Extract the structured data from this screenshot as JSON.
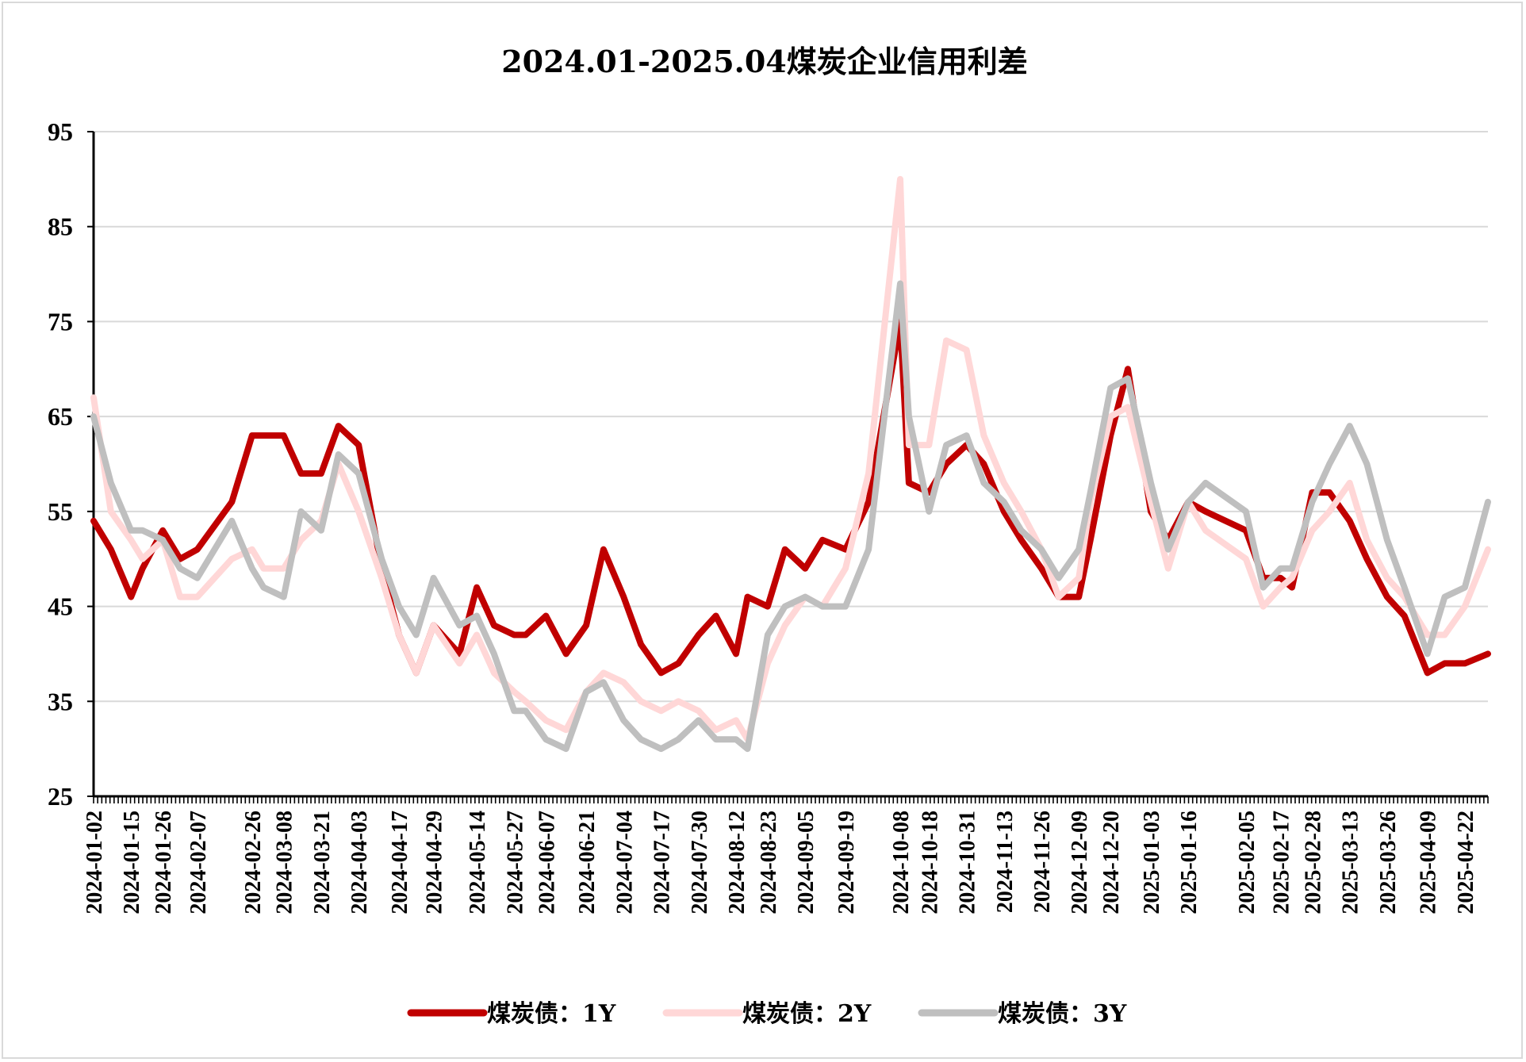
{
  "chart_data": {
    "type": "line",
    "title": "2024.01-2025.04煤炭企业信用利差",
    "xlabel": "",
    "ylabel": "",
    "ylim": [
      25,
      95
    ],
    "yticks": [
      25,
      35,
      45,
      55,
      65,
      75,
      85,
      95
    ],
    "x_tick_labels": [
      "2024-01-02",
      "2024-01-15",
      "2024-01-26",
      "2024-02-07",
      "2024-02-26",
      "2024-03-08",
      "2024-03-21",
      "2024-04-03",
      "2024-04-17",
      "2024-04-29",
      "2024-05-14",
      "2024-05-27",
      "2024-06-07",
      "2024-06-21",
      "2024-07-04",
      "2024-07-17",
      "2024-07-30",
      "2024-08-12",
      "2024-08-23",
      "2024-09-05",
      "2024-09-19",
      "2024-10-08",
      "2024-10-18",
      "2024-10-31",
      "2024-11-13",
      "2024-11-26",
      "2024-12-09",
      "2024-12-20",
      "2025-01-03",
      "2025-01-16",
      "2025-02-05",
      "2025-02-17",
      "2025-02-28",
      "2025-03-13",
      "2025-03-26",
      "2025-04-09",
      "2025-04-22"
    ],
    "x": [
      "2024-01-02",
      "2024-01-08",
      "2024-01-15",
      "2024-01-19",
      "2024-01-26",
      "2024-02-01",
      "2024-02-07",
      "2024-02-19",
      "2024-02-26",
      "2024-03-01",
      "2024-03-08",
      "2024-03-14",
      "2024-03-21",
      "2024-03-27",
      "2024-04-03",
      "2024-04-11",
      "2024-04-17",
      "2024-04-23",
      "2024-04-29",
      "2024-05-08",
      "2024-05-14",
      "2024-05-20",
      "2024-05-27",
      "2024-05-31",
      "2024-06-07",
      "2024-06-14",
      "2024-06-21",
      "2024-06-27",
      "2024-07-04",
      "2024-07-10",
      "2024-07-17",
      "2024-07-23",
      "2024-07-30",
      "2024-08-05",
      "2024-08-12",
      "2024-08-16",
      "2024-08-23",
      "2024-08-29",
      "2024-09-05",
      "2024-09-11",
      "2024-09-19",
      "2024-09-27",
      "2024-10-08",
      "2024-10-11",
      "2024-10-18",
      "2024-10-24",
      "2024-10-31",
      "2024-11-06",
      "2024-11-13",
      "2024-11-19",
      "2024-11-26",
      "2024-12-02",
      "2024-12-09",
      "2024-12-13",
      "2024-12-20",
      "2024-12-26",
      "2025-01-03",
      "2025-01-09",
      "2025-01-16",
      "2025-01-22",
      "2025-02-05",
      "2025-02-11",
      "2025-02-17",
      "2025-02-21",
      "2025-02-28",
      "2025-03-06",
      "2025-03-13",
      "2025-03-19",
      "2025-03-26",
      "2025-04-01",
      "2025-04-09",
      "2025-04-15",
      "2025-04-22",
      "2025-04-30"
    ],
    "series": [
      {
        "name": "煤炭债：1Y",
        "color": "#c00000",
        "values": [
          54,
          51,
          46,
          49,
          53,
          50,
          51,
          56,
          63,
          63,
          63,
          59,
          59,
          64,
          62,
          49,
          42,
          38,
          43,
          40,
          47,
          43,
          42,
          42,
          44,
          40,
          43,
          51,
          46,
          41,
          38,
          39,
          42,
          44,
          40,
          46,
          45,
          51,
          49,
          52,
          51,
          56,
          75,
          58,
          57,
          60,
          62,
          60,
          55,
          52,
          49,
          46,
          46,
          52,
          63,
          70,
          55,
          52,
          56,
          55,
          53,
          48,
          48,
          47,
          57,
          57,
          54,
          50,
          46,
          44,
          38,
          39,
          39,
          40
        ]
      },
      {
        "name": "煤炭债：2Y",
        "color": "#ffd7d7",
        "values": [
          67,
          55,
          52,
          50,
          52,
          46,
          46,
          50,
          51,
          49,
          49,
          52,
          54,
          60,
          55,
          48,
          42,
          38,
          43,
          39,
          42,
          38,
          36,
          35,
          33,
          32,
          36,
          38,
          37,
          35,
          34,
          35,
          34,
          32,
          33,
          31,
          39,
          43,
          46,
          45,
          49,
          59,
          90,
          62,
          62,
          73,
          72,
          63,
          58,
          55,
          51,
          46,
          48,
          56,
          65,
          66,
          56,
          49,
          56,
          53,
          50,
          45,
          47,
          48,
          53,
          55,
          58,
          52,
          48,
          46,
          42,
          42,
          45,
          51
        ]
      },
      {
        "name": "煤炭债：3Y",
        "color": "#bfbfbf",
        "values": [
          65,
          58,
          53,
          53,
          52,
          49,
          48,
          54,
          49,
          47,
          46,
          55,
          53,
          61,
          59,
          50,
          45,
          42,
          48,
          43,
          44,
          40,
          34,
          34,
          31,
          30,
          36,
          37,
          33,
          31,
          30,
          31,
          33,
          31,
          31,
          30,
          42,
          45,
          46,
          45,
          45,
          51,
          79,
          65,
          55,
          62,
          63,
          58,
          56,
          53,
          51,
          48,
          51,
          57,
          68,
          69,
          58,
          51,
          56,
          58,
          55,
          47,
          49,
          49,
          56,
          60,
          64,
          60,
          52,
          47,
          40,
          46,
          47,
          56
        ]
      }
    ],
    "legend_position": "bottom",
    "grid": "horizontal"
  }
}
